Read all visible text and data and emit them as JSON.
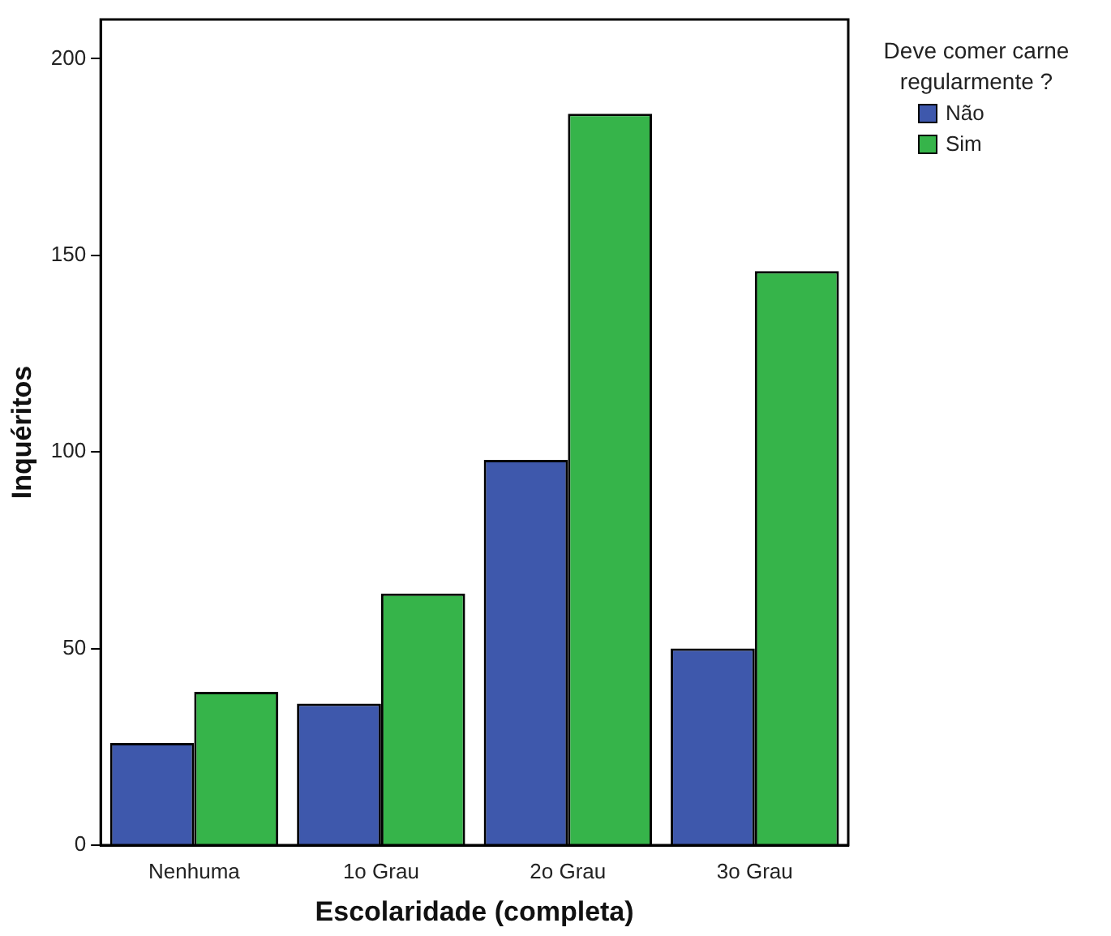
{
  "chart_data": {
    "type": "bar",
    "xlabel": "Escolaridade (completa)",
    "ylabel": "Inquéritos",
    "legend_title": "Deve comer carne regularmente ?",
    "legend": "top right",
    "categories": [
      "Nenhuma",
      "1o Grau",
      "2o Grau",
      "3o Grau"
    ],
    "series": [
      {
        "name": "Não",
        "color": "#3e58ac",
        "values": [
          26,
          36,
          98,
          50
        ]
      },
      {
        "name": "Sim",
        "color": "#36b44a",
        "values": [
          39,
          64,
          186,
          146
        ]
      }
    ],
    "ylim": [
      0,
      210
    ],
    "yticks": [
      0,
      50,
      100,
      150,
      200
    ],
    "grid": false
  }
}
